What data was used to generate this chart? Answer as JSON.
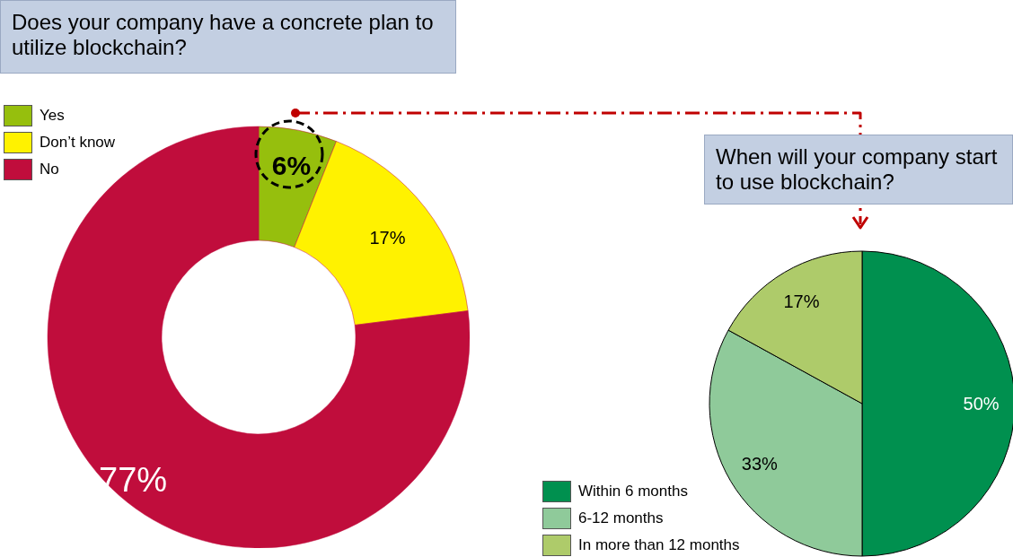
{
  "chart_data": [
    {
      "type": "donut",
      "title": "Does your company have a concrete plan to utilize blockchain?",
      "categories": [
        "Yes",
        "Don’t know",
        "No"
      ],
      "values": [
        6,
        17,
        77
      ],
      "colors": [
        "#96bf0d",
        "#fff200",
        "#c00d3c"
      ],
      "value_labels": [
        "6%",
        "17%",
        "77%"
      ],
      "legend": "top left"
    },
    {
      "type": "pie",
      "title": "When will your company start to use blockchain?",
      "categories": [
        "Within 6 months",
        "6-12 months",
        "In more than 12 months"
      ],
      "values": [
        50,
        33,
        17
      ],
      "colors": [
        "#00904f",
        "#8fca9a",
        "#aecb6a"
      ],
      "value_labels": [
        "50%",
        "33%",
        "17%"
      ],
      "legend": "bottom left"
    }
  ]
}
